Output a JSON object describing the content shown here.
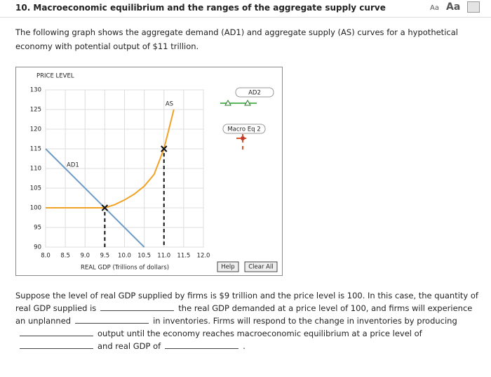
{
  "header": {
    "title": "10. Macroeconomic equilibrium and the ranges of the aggregate supply curve",
    "font_small": "Aa",
    "font_large": "Aa"
  },
  "intro": "The following graph shows the aggregate demand (AD1) and aggregate supply (AS) curves for a hypothetical economy with potential output of $11 trillion.",
  "chart_data": {
    "type": "line",
    "y_label": "PRICE LEVEL",
    "x_label": "REAL GDP (Trillions of dollars)",
    "xlim": [
      8,
      12
    ],
    "xticks": [
      {
        "value": 8,
        "label": "8.0"
      },
      8.5,
      {
        "value": 9,
        "label": "9.0"
      },
      9.5,
      {
        "value": 10,
        "label": "10.0"
      },
      10.5,
      {
        "value": 11,
        "label": "11.0"
      },
      11.5,
      {
        "value": 12,
        "label": "12.0"
      }
    ],
    "ylim": [
      90,
      130
    ],
    "yticks": [
      90,
      95,
      100,
      105,
      110,
      115,
      120,
      125,
      130
    ],
    "grid": true,
    "series": [
      {
        "name": "AD1",
        "color": "#6f9bc4",
        "x": [
          8,
          10.5
        ],
        "values": [
          115,
          90
        ]
      },
      {
        "name": "AS",
        "color": "#f2a227",
        "x": [
          8,
          9.5,
          9.75,
          10,
          10.25,
          10.5,
          10.75,
          11,
          11.25
        ],
        "values": [
          100,
          100,
          100.8,
          102,
          103.5,
          105.5,
          108.5,
          115,
          125
        ]
      }
    ],
    "markers": {
      "x": [
        9.5,
        11
      ],
      "values": [
        100,
        115
      ]
    }
  },
  "palette": [
    "AD2",
    "Macro Eq 2"
  ],
  "buttons": [
    "Help",
    "Clear All"
  ],
  "question": [
    "Suppose the level of real GDP supplied by firms is $9 trillion and the price level is 100. In this case, the quantity of real GDP supplied is",
    "the real GDP demanded at a price level of 100, and firms will experience an unplanned",
    "in inventories. Firms will respond to the change in inventories by producing",
    "output until the economy reaches macroeconomic equilibrium at a price level of",
    "and real GDP of",
    "."
  ]
}
